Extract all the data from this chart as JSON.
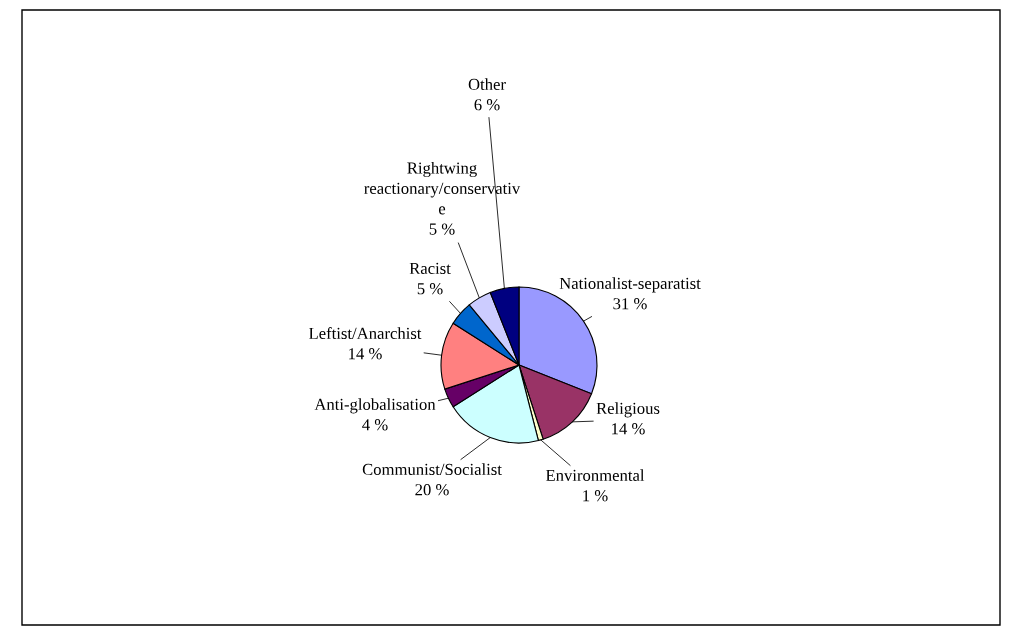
{
  "chart_data": {
    "type": "pie",
    "categories": [
      "Nationalist-separatist",
      "Religious",
      "Environmental",
      "Communist/Socialist",
      "Anti-globalisation",
      "Leftist/Anarchist",
      "Racist",
      "Rightwing\nreactionary/conservativ\ne",
      "Other"
    ],
    "values": [
      31,
      14,
      1,
      20,
      4,
      14,
      5,
      5,
      6
    ],
    "value_labels": [
      "31 %",
      "14 %",
      "1 %",
      "20 %",
      "4 %",
      "14 %",
      "5 %",
      "5 %",
      "6 %"
    ],
    "colors": [
      "#9999ff",
      "#993366",
      "#ffffcc",
      "#ccffff",
      "#660066",
      "#ff8080",
      "#0066cc",
      "#ccccff",
      "#000080"
    ],
    "legend": false
  }
}
